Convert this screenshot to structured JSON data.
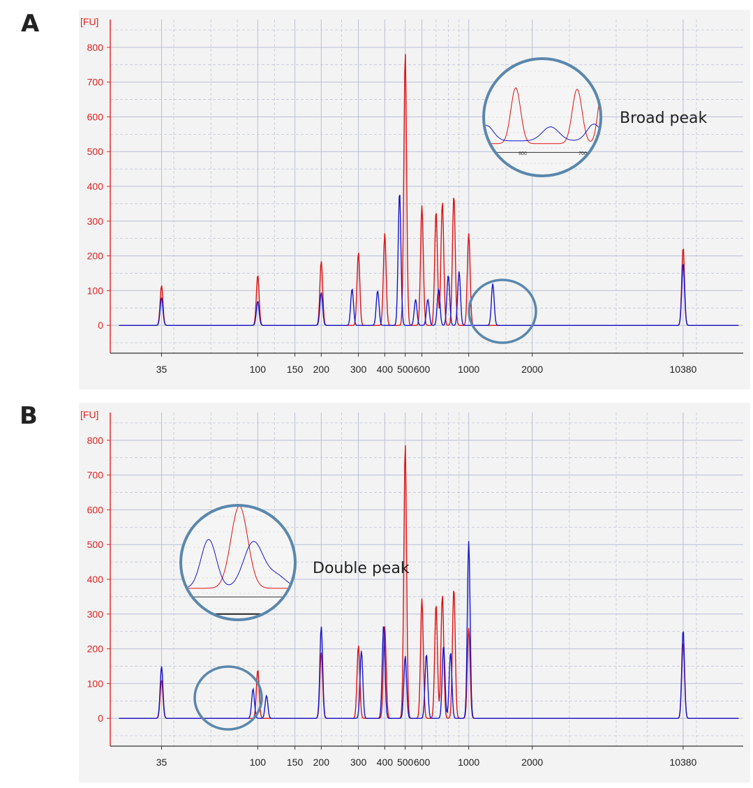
{
  "panels": [
    {
      "letter": "A",
      "y_unit": "[FU]",
      "callout": "Broad peak",
      "inset_ticks": [
        "600",
        "700"
      ]
    },
    {
      "letter": "B",
      "y_unit": "[FU]",
      "callout": "Double peak",
      "inset_ticks": []
    }
  ],
  "colors": {
    "red_trace": "#e01010",
    "blue_trace": "#1515d0",
    "circle": "#5a87ad",
    "grid": "#b8bfd8",
    "axis": "#e02020",
    "plot_bg": "#f3f3f3"
  },
  "chart_data": [
    {
      "type": "line",
      "x_scale": "log",
      "xlim": [
        20,
        20000
      ],
      "ylim": [
        -80,
        880
      ],
      "x_ticks": [
        {
          "label": "35",
          "v": 35
        },
        {
          "label": "100",
          "v": 100
        },
        {
          "label": "150",
          "v": 150
        },
        {
          "label": "200",
          "v": 200
        },
        {
          "label": "300",
          "v": 300
        },
        {
          "label": "400",
          "v": 400
        },
        {
          "label": "500",
          "v": 500
        },
        {
          "label": "600",
          "v": 600
        },
        {
          "label": "1000",
          "v": 1000
        },
        {
          "label": "2000",
          "v": 2000
        },
        {
          "label": "10380",
          "v": 10380
        }
      ],
      "y_ticks": [
        0,
        100,
        200,
        300,
        400,
        500,
        600,
        700,
        800
      ],
      "series": [
        {
          "color": "red",
          "peaks": [
            [
              35,
              115
            ],
            [
              100,
              145
            ],
            [
              200,
              185
            ],
            [
              300,
              210
            ],
            [
              400,
              265
            ],
            [
              500,
              785
            ],
            [
              600,
              345
            ],
            [
              700,
              330
            ],
            [
              750,
              355
            ],
            [
              850,
              375
            ],
            [
              1000,
              265
            ],
            [
              10380,
              225
            ]
          ]
        },
        {
          "color": "blue",
          "peaks": [
            [
              35,
              80
            ],
            [
              100,
              70
            ],
            [
              200,
              95
            ],
            [
              280,
              105
            ],
            [
              370,
              100
            ],
            [
              470,
              385
            ],
            [
              560,
              75
            ],
            [
              640,
              75
            ],
            [
              720,
              105
            ],
            [
              800,
              145
            ],
            [
              900,
              155
            ],
            [
              1300,
              120
            ],
            [
              10380,
              180
            ]
          ]
        }
      ]
    },
    {
      "type": "line",
      "x_scale": "log",
      "xlim": [
        20,
        20000
      ],
      "ylim": [
        -80,
        880
      ],
      "x_ticks": [
        {
          "label": "35",
          "v": 35
        },
        {
          "label": "100",
          "v": 100
        },
        {
          "label": "150",
          "v": 150
        },
        {
          "label": "200",
          "v": 200
        },
        {
          "label": "300",
          "v": 300
        },
        {
          "label": "400",
          "v": 400
        },
        {
          "label": "500",
          "v": 500
        },
        {
          "label": "600",
          "v": 600
        },
        {
          "label": "1000",
          "v": 1000
        },
        {
          "label": "2000",
          "v": 2000
        },
        {
          "label": "10380",
          "v": 10380
        }
      ],
      "y_ticks": [
        0,
        100,
        200,
        300,
        400,
        500,
        600,
        700,
        800
      ],
      "series": [
        {
          "color": "red",
          "peaks": [
            [
              35,
              110
            ],
            [
              100,
              140
            ],
            [
              200,
              190
            ],
            [
              300,
              210
            ],
            [
              400,
              265
            ],
            [
              500,
              790
            ],
            [
              600,
              345
            ],
            [
              700,
              330
            ],
            [
              750,
              355
            ],
            [
              850,
              375
            ],
            [
              1000,
              260
            ],
            [
              10380,
              220
            ]
          ]
        },
        {
          "color": "blue",
          "peaks": [
            [
              35,
              150
            ],
            [
              95,
              85
            ],
            [
              110,
              65
            ],
            [
              200,
              265
            ],
            [
              310,
              195
            ],
            [
              395,
              270
            ],
            [
              500,
              180
            ],
            [
              630,
              185
            ],
            [
              760,
              210
            ],
            [
              820,
              190
            ],
            [
              1000,
              510
            ],
            [
              10380,
              255
            ]
          ]
        }
      ]
    }
  ]
}
